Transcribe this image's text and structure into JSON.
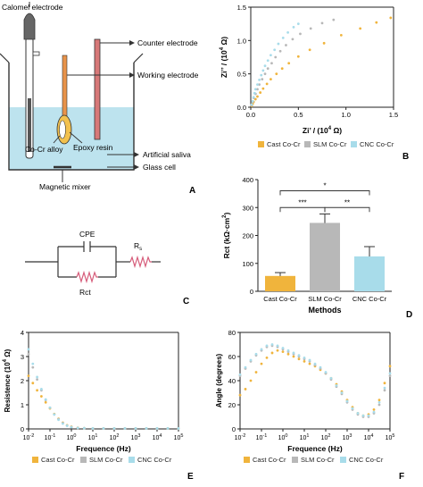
{
  "colors": {
    "cast": "#f0b43c",
    "slm": "#b8b8b8",
    "cnc": "#a8dcea",
    "saliva": "#bde3ee",
    "rod": "#e8934a",
    "counter": "#c96a6a",
    "resistor": "#d65c7a"
  },
  "legend_labels": {
    "cast": "Cast Co-Cr",
    "slm": "SLM Co-Cr",
    "cnc": "CNC Co-Cr"
  },
  "panel_letters": {
    "a": "A",
    "b": "B",
    "c": "C",
    "d": "D",
    "e": "E",
    "f": "F"
  },
  "schematic": {
    "calomel": "Calomel electrode",
    "counter": "Counter electrode",
    "working": "Working electrode",
    "alloy": "Co-Cr alloy",
    "epoxy": "Epoxy resin",
    "saliva": "Artificial saliva",
    "glass": "Glass cell",
    "mixer": "Magnetic mixer"
  },
  "circuit": {
    "cpe": "CPE",
    "rct": "Rct",
    "rs_main": "R",
    "rs_sub": "s"
  },
  "chart_data": [
    {
      "id": "B",
      "type": "scatter",
      "xlabel_main": "Zi’ / (10",
      "xlabel_exp": "4",
      "xlabel_end": " Ω)",
      "ylabel_main": "Zi’’ / (10",
      "ylabel_exp": "4",
      "ylabel_end": " Ω)",
      "xlim": [
        0,
        1.5
      ],
      "ylim": [
        0,
        1.5
      ],
      "x_ticks": [
        "0.0",
        "0.5",
        "1.0",
        "1.5"
      ],
      "y_ticks": [
        "0.0",
        "0.5",
        "1.0",
        "1.5"
      ],
      "series": [
        {
          "name": "Cast Co-Cr",
          "key": "cast",
          "x": [
            0.01,
            0.02,
            0.03,
            0.05,
            0.07,
            0.1,
            0.13,
            0.17,
            0.21,
            0.27,
            0.33,
            0.4,
            0.5,
            0.62,
            0.77,
            0.95,
            1.15,
            1.32,
            1.47
          ],
          "y": [
            0.02,
            0.05,
            0.08,
            0.12,
            0.16,
            0.22,
            0.28,
            0.35,
            0.42,
            0.5,
            0.58,
            0.66,
            0.76,
            0.86,
            0.96,
            1.08,
            1.18,
            1.27,
            1.34
          ]
        },
        {
          "name": "SLM Co-Cr",
          "key": "slm",
          "x": [
            0.01,
            0.02,
            0.03,
            0.05,
            0.07,
            0.09,
            0.12,
            0.15,
            0.18,
            0.22,
            0.26,
            0.31,
            0.37,
            0.44,
            0.52,
            0.63,
            0.75,
            0.87
          ],
          "y": [
            0.03,
            0.08,
            0.14,
            0.2,
            0.27,
            0.34,
            0.42,
            0.5,
            0.58,
            0.66,
            0.75,
            0.84,
            0.93,
            1.02,
            1.1,
            1.18,
            1.26,
            1.31
          ]
        },
        {
          "name": "CNC Co-Cr",
          "key": "cnc",
          "x": [
            0.01,
            0.02,
            0.03,
            0.04,
            0.05,
            0.07,
            0.09,
            0.11,
            0.13,
            0.15,
            0.18,
            0.21,
            0.25,
            0.29,
            0.34,
            0.39,
            0.45,
            0.5
          ],
          "y": [
            0.04,
            0.09,
            0.15,
            0.21,
            0.27,
            0.34,
            0.41,
            0.48,
            0.55,
            0.62,
            0.7,
            0.78,
            0.86,
            0.95,
            1.04,
            1.12,
            1.2,
            1.25
          ]
        }
      ]
    },
    {
      "id": "D",
      "type": "bar",
      "categories": [
        "Cast Co-Cr",
        "SLM Co-Cr",
        "CNC Co-Cr"
      ],
      "values": [
        55,
        245,
        125
      ],
      "errors": [
        12,
        32,
        35
      ],
      "keys": [
        "cast",
        "slm",
        "cnc"
      ],
      "xlabel": "Methods",
      "ylabel_main": "Rct (kΩ·cm",
      "ylabel_exp": "2",
      "ylabel_end": ")",
      "ylim": [
        0,
        400
      ],
      "y_ticks": [
        "0",
        "100",
        "200",
        "300",
        "400"
      ],
      "significance": [
        {
          "from": 0,
          "to": 1,
          "label": "***"
        },
        {
          "from": 1,
          "to": 2,
          "label": "**"
        },
        {
          "from": 0,
          "to": 2,
          "label": "*"
        }
      ]
    },
    {
      "id": "E",
      "type": "scatter",
      "xlabel": "Frequence (Hz)",
      "ylabel_main": "Resistence (10",
      "ylabel_exp": "4",
      "ylabel_end": " Ω)",
      "xlim_log10": [
        -2,
        5
      ],
      "ylim": [
        0,
        4
      ],
      "x_tick_exps": [
        "-2",
        "-1",
        "0",
        "1",
        "2",
        "3",
        "4",
        "5"
      ],
      "x_tick_base": "10",
      "y_ticks": [
        "0",
        "1",
        "2",
        "3",
        "4"
      ],
      "series": [
        {
          "name": "Cast Co-Cr",
          "key": "cast",
          "logx": [
            -2,
            -1.8,
            -1.6,
            -1.4,
            -1.2,
            -1.0,
            -0.8,
            -0.6,
            -0.4,
            -0.2,
            0.0,
            0.3,
            0.6,
            1.0,
            1.5,
            2,
            2.5,
            3,
            3.5,
            4,
            4.5,
            5
          ],
          "y": [
            2.2,
            1.9,
            1.6,
            1.35,
            1.1,
            0.85,
            0.62,
            0.42,
            0.26,
            0.15,
            0.09,
            0.05,
            0.03,
            0.02,
            0.02,
            0.02,
            0.02,
            0.02,
            0.02,
            0.02,
            0.02,
            0.02
          ]
        },
        {
          "name": "SLM Co-Cr",
          "key": "slm",
          "logx": [
            -2,
            -1.8,
            -1.6,
            -1.4,
            -1.2,
            -1.0,
            -0.8,
            -0.6,
            -0.4,
            -0.2,
            0.0,
            0.3,
            0.6,
            1.0,
            1.5,
            2,
            2.5,
            3,
            3.5,
            4,
            4.5,
            5
          ],
          "y": [
            3.1,
            2.55,
            2.05,
            1.6,
            1.2,
            0.88,
            0.6,
            0.4,
            0.24,
            0.14,
            0.08,
            0.04,
            0.03,
            0.02,
            0.02,
            0.02,
            0.02,
            0.02,
            0.02,
            0.02,
            0.02,
            0.02
          ]
        },
        {
          "name": "CNC Co-Cr",
          "key": "cnc",
          "logx": [
            -2,
            -1.8,
            -1.6,
            -1.4,
            -1.2,
            -1.0,
            -0.8,
            -0.6,
            -0.4,
            -0.2,
            0.0,
            0.3,
            0.6,
            1.0,
            1.5,
            2,
            2.5,
            3,
            3.5,
            4,
            4.5,
            5
          ],
          "y": [
            3.3,
            2.7,
            2.15,
            1.65,
            1.22,
            0.88,
            0.6,
            0.38,
            0.22,
            0.13,
            0.07,
            0.04,
            0.03,
            0.02,
            0.02,
            0.02,
            0.02,
            0.02,
            0.02,
            0.02,
            0.02,
            0.02
          ]
        }
      ]
    },
    {
      "id": "F",
      "type": "scatter",
      "xlabel": "Frequence (Hz)",
      "ylabel": "Angle (degrees)",
      "xlim_log10": [
        -2,
        5
      ],
      "ylim": [
        0,
        80
      ],
      "x_tick_exps": [
        "-2",
        "-1",
        "0",
        "1",
        "2",
        "3",
        "4",
        "5"
      ],
      "x_tick_base": "10",
      "y_ticks": [
        "0",
        "20",
        "40",
        "60",
        "80"
      ],
      "series": [
        {
          "name": "Cast Co-Cr",
          "key": "cast",
          "logx": [
            -2,
            -1.75,
            -1.5,
            -1.25,
            -1,
            -0.75,
            -0.5,
            -0.25,
            0,
            0.25,
            0.5,
            0.75,
            1,
            1.25,
            1.5,
            1.75,
            2,
            2.25,
            2.5,
            2.75,
            3,
            3.25,
            3.5,
            3.75,
            4,
            4.25,
            4.5,
            4.75,
            5
          ],
          "y": [
            28,
            33,
            40,
            47,
            54,
            59,
            63,
            65,
            64,
            62,
            60,
            58,
            56,
            54,
            52,
            49,
            46,
            42,
            37,
            31,
            24,
            18,
            13,
            11,
            12,
            16,
            24,
            38,
            52
          ]
        },
        {
          "name": "SLM Co-Cr",
          "key": "slm",
          "logx": [
            -2,
            -1.75,
            -1.5,
            -1.25,
            -1,
            -0.75,
            -0.5,
            -0.25,
            0,
            0.25,
            0.5,
            0.75,
            1,
            1.25,
            1.5,
            1.75,
            2,
            2.25,
            2.5,
            2.75,
            3,
            3.25,
            3.5,
            3.75,
            4,
            4.25,
            4.5,
            4.75,
            5
          ],
          "y": [
            44,
            50,
            56,
            61,
            65,
            68,
            69,
            68,
            66,
            64,
            62,
            60,
            58,
            56,
            53,
            50,
            46,
            41,
            35,
            29,
            22,
            16,
            12,
            10,
            10,
            13,
            20,
            32,
            44
          ]
        },
        {
          "name": "CNC Co-Cr",
          "key": "cnc",
          "logx": [
            -2,
            -1.75,
            -1.5,
            -1.25,
            -1,
            -0.75,
            -0.5,
            -0.25,
            0,
            0.25,
            0.5,
            0.75,
            1,
            1.25,
            1.5,
            1.75,
            2,
            2.25,
            2.5,
            2.75,
            3,
            3.25,
            3.5,
            3.75,
            4,
            4.25,
            4.5,
            4.75,
            5
          ],
          "y": [
            45,
            51,
            57,
            62,
            66,
            69,
            70,
            69,
            67,
            65,
            63,
            61,
            59,
            57,
            54,
            51,
            47,
            42,
            36,
            30,
            23,
            17,
            13,
            11,
            11,
            14,
            22,
            34,
            46
          ]
        }
      ]
    }
  ]
}
